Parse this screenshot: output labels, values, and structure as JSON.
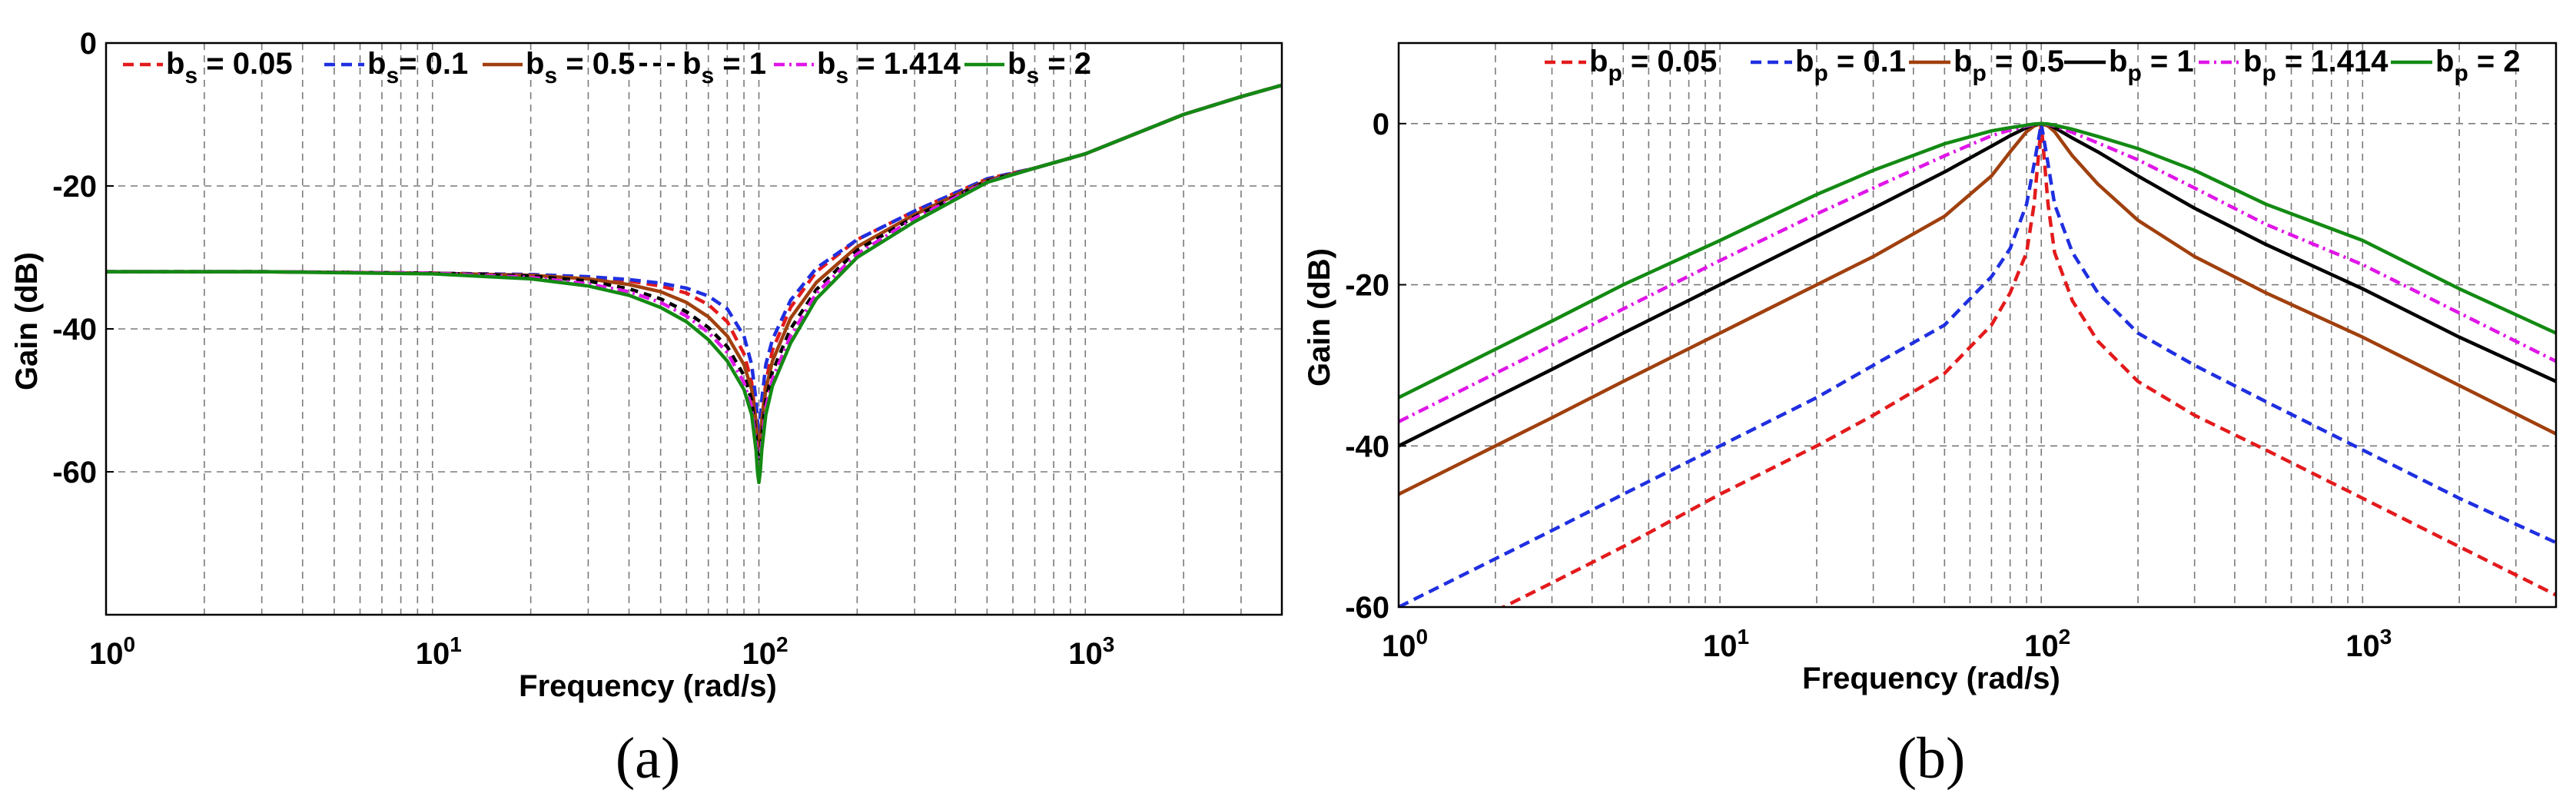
{
  "chart_data": [
    {
      "type": "line",
      "panel_label": "(a)",
      "xlabel": "Frequency  (rad/s)",
      "ylabel": "Gain  (dB)",
      "xscale": "log",
      "xlim": [
        1,
        4000
      ],
      "ylim": [
        -80,
        0
      ],
      "xticks": [
        {
          "base": "10",
          "exp": "0"
        },
        {
          "base": "10",
          "exp": "1"
        },
        {
          "base": "10",
          "exp": "2"
        },
        {
          "base": "10",
          "exp": "3"
        }
      ],
      "yticks": [
        0,
        -20,
        -40,
        -60
      ],
      "grid": true,
      "legend_position": "top",
      "legend": [
        {
          "main": "b",
          "sub": "s",
          "rest": " = 0.05"
        },
        {
          "main": "b",
          "sub": "s",
          "rest": "= 0.1"
        },
        {
          "main": "b",
          "sub": "s",
          "rest": " = 0.5"
        },
        {
          "main": "b",
          "sub": "s",
          "rest": " = 1"
        },
        {
          "main": "b",
          "sub": "s",
          "rest": " = 1.414"
        },
        {
          "main": "b",
          "sub": "s",
          "rest": " = 2"
        }
      ],
      "x": [
        1,
        3,
        10,
        20,
        30,
        40,
        50,
        60,
        70,
        80,
        90,
        95,
        98,
        99,
        100,
        101,
        102,
        105,
        110,
        125,
        150,
        200,
        300,
        500,
        700,
        1000,
        2000,
        3000,
        4000
      ],
      "series": [
        {
          "color": "#e31a1c",
          "dash": "14 8",
          "values": [
            -32,
            -32,
            -32.2,
            -32.4,
            -32.8,
            -33.3,
            -34.0,
            -35.0,
            -36.6,
            -39.0,
            -43.5,
            -47.5,
            -53,
            -55,
            -56,
            -55,
            -53,
            -47.5,
            -43,
            -37,
            -32,
            -27.5,
            -23.5,
            -19.0,
            -17.5,
            -15.5,
            -10.0,
            -7.5,
            -5.9
          ]
        },
        {
          "color": "#1f2fe0",
          "dash": "14 8",
          "values": [
            -32,
            -32,
            -32.2,
            -32.4,
            -32.7,
            -33.1,
            -33.6,
            -34.3,
            -35.4,
            -37.2,
            -41,
            -45,
            -50,
            -53,
            -55,
            -53,
            -50,
            -45,
            -41.5,
            -36,
            -31.5,
            -27.5,
            -23.5,
            -19.0,
            -17.5,
            -15.5,
            -10.0,
            -7.5,
            -5.9
          ]
        },
        {
          "color": "#a0400e",
          "dash": "",
          "values": [
            -32,
            -32,
            -32.2,
            -32.5,
            -33,
            -33.8,
            -34.8,
            -36.3,
            -38.3,
            -41.0,
            -45,
            -48.5,
            -53,
            -55.5,
            -56.5,
            -55.5,
            -53,
            -48.5,
            -44.5,
            -38.5,
            -33.5,
            -28.5,
            -24,
            -19.2,
            -17.5,
            -15.5,
            -10.0,
            -7.5,
            -5.9
          ]
        },
        {
          "color": "#000000",
          "dash": "10 8",
          "values": [
            -32,
            -32,
            -32.2,
            -32.6,
            -33.3,
            -34.4,
            -35.8,
            -37.6,
            -39.8,
            -42.5,
            -46.5,
            -50,
            -55,
            -57.5,
            -58.5,
            -57.5,
            -55,
            -50,
            -46,
            -40,
            -34.5,
            -29,
            -24.3,
            -19.3,
            -17.5,
            -15.5,
            -10.0,
            -7.5,
            -5.9
          ]
        },
        {
          "color": "#e015e8",
          "dash": "14 6 3 6",
          "values": [
            -32,
            -32,
            -32.2,
            -32.8,
            -33.7,
            -34.8,
            -36.3,
            -38.2,
            -40.5,
            -43.3,
            -47.5,
            -51,
            -56,
            -58.5,
            -59.5,
            -58.5,
            -56,
            -51,
            -47,
            -41,
            -35,
            -29.5,
            -24.5,
            -19.4,
            -17.5,
            -15.5,
            -10.0,
            -7.5,
            -5.9
          ]
        },
        {
          "color": "#138a13",
          "dash": "",
          "values": [
            -32,
            -32,
            -32.3,
            -33,
            -34,
            -35.3,
            -37,
            -39,
            -41.5,
            -44.5,
            -48.5,
            -52,
            -57,
            -60,
            -61.5,
            -60,
            -57,
            -52,
            -48,
            -42,
            -35.8,
            -30,
            -25,
            -19.5,
            -17.5,
            -15.5,
            -10.0,
            -7.5,
            -5.9
          ]
        }
      ]
    },
    {
      "type": "line",
      "panel_label": "(b)",
      "xlabel": "Frequency  (rad/s)",
      "ylabel": "Gain  (dB)",
      "xscale": "log",
      "xlim": [
        1,
        4000
      ],
      "ylim": [
        -60,
        10
      ],
      "xticks": [
        {
          "base": "10",
          "exp": "0"
        },
        {
          "base": "10",
          "exp": "1"
        },
        {
          "base": "10",
          "exp": "2"
        },
        {
          "base": "10",
          "exp": "3"
        }
      ],
      "yticks": [
        0,
        -20,
        -40,
        -60
      ],
      "grid": true,
      "legend_position": "top",
      "legend": [
        {
          "main": "b",
          "sub": "p",
          "rest": " = 0.05"
        },
        {
          "main": "b",
          "sub": "p",
          "rest": " = 0.1"
        },
        {
          "main": "b",
          "sub": "p",
          "rest": " = 0.5"
        },
        {
          "main": "b",
          "sub": "p",
          "rest": " = 1"
        },
        {
          "main": "b",
          "sub": "p",
          "rest": " = 1.414"
        },
        {
          "main": "b",
          "sub": "p",
          "rest": " = 2"
        }
      ],
      "x": [
        1,
        2,
        3,
        5,
        10,
        20,
        30,
        50,
        70,
        80,
        90,
        95,
        100,
        105,
        110,
        125,
        150,
        200,
        300,
        500,
        1000,
        2000,
        4000
      ],
      "series": [
        {
          "color": "#e31a1c",
          "dash": "14 8",
          "values": [
            null,
            -60.5,
            -57,
            -52.5,
            -46,
            -40,
            -36.2,
            -31,
            -25,
            -21,
            -16,
            -10,
            0,
            -10,
            -16,
            -22,
            -27,
            -32,
            -36.2,
            -40.5,
            -46.5,
            -52.5,
            -58.5
          ]
        },
        {
          "color": "#1f2fe0",
          "dash": "14 8",
          "values": [
            -60,
            -54,
            -50.5,
            -46,
            -40,
            -34,
            -30,
            -25,
            -19,
            -15.5,
            -10,
            -5,
            0,
            -5,
            -10,
            -16,
            -21,
            -26,
            -30,
            -34.5,
            -40.5,
            -46.5,
            -52
          ]
        },
        {
          "color": "#a0400e",
          "dash": "",
          "values": [
            -46,
            -40,
            -36.5,
            -32,
            -26,
            -20,
            -16.5,
            -11.5,
            -6.5,
            -3.5,
            -1,
            -0.3,
            0,
            -0.3,
            -1,
            -4,
            -7.5,
            -12,
            -16.5,
            -21,
            -26.5,
            -32.5,
            -38.5
          ]
        },
        {
          "color": "#000000",
          "dash": "",
          "values": [
            -40,
            -34,
            -30.5,
            -26,
            -20,
            -14,
            -10.5,
            -6,
            -2.8,
            -1.5,
            -0.5,
            -0.1,
            0,
            -0.1,
            -0.5,
            -1.8,
            -3.5,
            -6.5,
            -10.5,
            -15,
            -20.5,
            -26.5,
            -32
          ]
        },
        {
          "color": "#e015e8",
          "dash": "14 6 3 6",
          "values": [
            -37,
            -31,
            -27.5,
            -23,
            -17,
            -11.2,
            -8,
            -4,
            -1.5,
            -0.8,
            -0.3,
            -0.1,
            0,
            -0.1,
            -0.3,
            -1.1,
            -2.4,
            -4.5,
            -8,
            -12.5,
            -17.5,
            -23.5,
            -29.5
          ]
        },
        {
          "color": "#138a13",
          "dash": "",
          "values": [
            -34,
            -28,
            -24.5,
            -20,
            -14.5,
            -8.8,
            -5.8,
            -2.5,
            -0.9,
            -0.5,
            -0.2,
            -0.05,
            0,
            -0.05,
            -0.2,
            -0.7,
            -1.6,
            -3.1,
            -5.8,
            -10,
            -14.5,
            -20.5,
            -26
          ]
        }
      ]
    }
  ]
}
